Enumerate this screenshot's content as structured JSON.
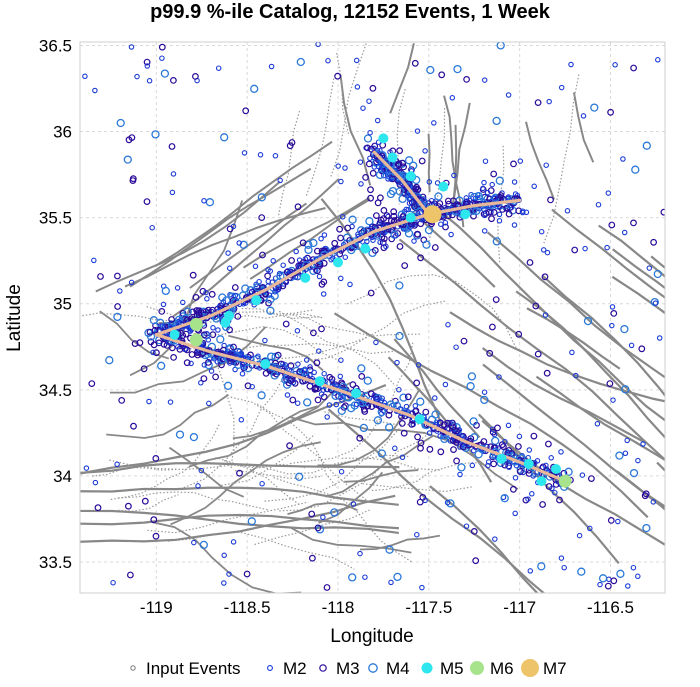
{
  "chart_data": {
    "type": "scatter",
    "title": "p99.9 %-ile Catalog, 12152 Events, 1 Week",
    "xlabel": "Longitude",
    "ylabel": "Latitude",
    "xlim": [
      -119.42,
      -116.2
    ],
    "ylim": [
      33.32,
      36.52
    ],
    "x_ticks": [
      "-119",
      "-118.5",
      "-118",
      "-117.5",
      "-117",
      "-116.5"
    ],
    "x_tick_values": [
      -119,
      -118.5,
      -118,
      -117.5,
      -117,
      -116.5
    ],
    "y_ticks": [
      "33.5",
      "34",
      "34.5",
      "35",
      "35.5",
      "36",
      "36.5"
    ],
    "y_tick_values": [
      33.5,
      34,
      34.5,
      35,
      35.5,
      36,
      36.5
    ],
    "grid": true,
    "legend_position": "bottom",
    "legend": [
      {
        "label": "Input Events",
        "style": "input"
      },
      {
        "label": "M2",
        "style": "m2"
      },
      {
        "label": "M3",
        "style": "m3"
      },
      {
        "label": "M4",
        "style": "m4"
      },
      {
        "label": "M5",
        "style": "m5"
      },
      {
        "label": "M6",
        "style": "m6"
      },
      {
        "label": "M7",
        "style": "m7"
      }
    ],
    "colors": {
      "input": "#777777",
      "m2": "#1a3ad6",
      "m3": "#2a0a9a",
      "m4": "#2a78d8",
      "m5": "#2ee6ee",
      "m6": "#a6e38a",
      "m7": "#eec46a",
      "rupture": "#e8b89a",
      "faults": "#888888"
    },
    "rupture_traces": [
      [
        [
          -119.0,
          34.82
        ],
        [
          -118.7,
          34.93
        ],
        [
          -118.4,
          35.08
        ],
        [
          -118.1,
          35.26
        ],
        [
          -117.8,
          35.42
        ],
        [
          -117.5,
          35.52
        ],
        [
          -117.25,
          35.57
        ],
        [
          -117.0,
          35.6
        ]
      ],
      [
        [
          -119.0,
          34.82
        ],
        [
          -118.7,
          34.72
        ],
        [
          -118.4,
          34.64
        ],
        [
          -118.0,
          34.5
        ],
        [
          -117.6,
          34.35
        ],
        [
          -117.3,
          34.2
        ],
        [
          -117.0,
          34.08
        ],
        [
          -116.75,
          33.97
        ]
      ],
      [
        [
          -117.5,
          35.52
        ],
        [
          -117.65,
          35.72
        ],
        [
          -117.8,
          35.88
        ]
      ]
    ],
    "large_events": [
      {
        "mag": "M7",
        "lon": -117.48,
        "lat": 35.52
      },
      {
        "mag": "M6",
        "lon": -118.78,
        "lat": 34.88
      },
      {
        "mag": "M6",
        "lon": -118.78,
        "lat": 34.79
      },
      {
        "mag": "M6",
        "lon": -116.75,
        "lat": 33.97
      },
      {
        "mag": "M5",
        "lon": -117.75,
        "lat": 35.96
      },
      {
        "mag": "M5",
        "lon": -117.7,
        "lat": 35.85
      },
      {
        "mag": "M5",
        "lon": -117.6,
        "lat": 35.74
      },
      {
        "mag": "M5",
        "lon": -117.42,
        "lat": 35.68
      },
      {
        "mag": "M5",
        "lon": -117.6,
        "lat": 35.5
      },
      {
        "mag": "M5",
        "lon": -117.3,
        "lat": 35.52
      },
      {
        "mag": "M5",
        "lon": -117.85,
        "lat": 35.32
      },
      {
        "mag": "M5",
        "lon": -118.0,
        "lat": 35.24
      },
      {
        "mag": "M5",
        "lon": -118.18,
        "lat": 35.15
      },
      {
        "mag": "M5",
        "lon": -118.45,
        "lat": 35.02
      },
      {
        "mag": "M5",
        "lon": -118.6,
        "lat": 34.93
      },
      {
        "mag": "M5",
        "lon": -118.62,
        "lat": 34.89
      },
      {
        "mag": "M5",
        "lon": -118.9,
        "lat": 34.82
      },
      {
        "mag": "M5",
        "lon": -118.4,
        "lat": 34.65
      },
      {
        "mag": "M5",
        "lon": -118.1,
        "lat": 34.55
      },
      {
        "mag": "M5",
        "lon": -117.9,
        "lat": 34.48
      },
      {
        "mag": "M5",
        "lon": -117.55,
        "lat": 34.33
      },
      {
        "mag": "M5",
        "lon": -117.1,
        "lat": 34.1
      },
      {
        "mag": "M5",
        "lon": -116.95,
        "lat": 34.07
      },
      {
        "mag": "M5",
        "lon": -116.88,
        "lat": 33.97
      },
      {
        "mag": "M5",
        "lon": -116.8,
        "lat": 34.04
      }
    ]
  }
}
